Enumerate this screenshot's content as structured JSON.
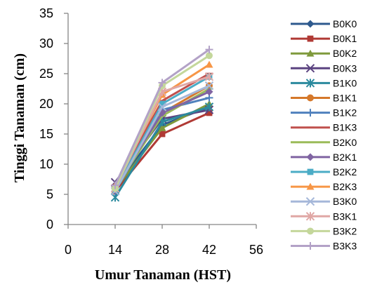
{
  "chart_data": {
    "type": "line",
    "xlabel": "Umur Tanaman (HST)",
    "ylabel": "Tinggi Tanaman (cm)",
    "xlim": [
      0,
      56
    ],
    "ylim": [
      0,
      35
    ],
    "x_ticks": [
      0,
      14,
      28,
      42,
      56
    ],
    "y_ticks": [
      0,
      5,
      10,
      15,
      20,
      25,
      30,
      35
    ],
    "grid": false,
    "legend_position": "right",
    "x": [
      14,
      28,
      42
    ],
    "series": [
      {
        "name": "B0K0",
        "color": "#2e5a8e",
        "marker": "diamond",
        "values": [
          6.3,
          16.5,
          19.5
        ]
      },
      {
        "name": "B0K1",
        "color": "#b03a35",
        "marker": "square",
        "values": [
          5.5,
          15.0,
          18.5
        ]
      },
      {
        "name": "B0K2",
        "color": "#7f9a3c",
        "marker": "triangle",
        "values": [
          5.8,
          16.0,
          20.0
        ]
      },
      {
        "name": "B0K3",
        "color": "#5b4380",
        "marker": "x",
        "values": [
          7.0,
          17.5,
          19.0
        ]
      },
      {
        "name": "B1K0",
        "color": "#2b8a9e",
        "marker": "asterisk",
        "values": [
          4.5,
          17.0,
          19.5
        ]
      },
      {
        "name": "B1K1",
        "color": "#d5782a",
        "marker": "circle",
        "values": [
          6.0,
          18.5,
          23.0
        ]
      },
      {
        "name": "B1K2",
        "color": "#4f81bd",
        "marker": "plus",
        "values": [
          5.5,
          19.0,
          21.0
        ]
      },
      {
        "name": "B1K3",
        "color": "#c0504d",
        "marker": "dash",
        "values": [
          6.5,
          20.5,
          25.0
        ]
      },
      {
        "name": "B2K0",
        "color": "#9bbb59",
        "marker": "dash",
        "values": [
          6.0,
          18.0,
          22.5
        ]
      },
      {
        "name": "B2K1",
        "color": "#8064a2",
        "marker": "diamond",
        "values": [
          6.2,
          18.5,
          22.0
        ]
      },
      {
        "name": "B2K2",
        "color": "#4bacc6",
        "marker": "square",
        "values": [
          5.8,
          20.0,
          24.5
        ]
      },
      {
        "name": "B2K3",
        "color": "#f79646",
        "marker": "triangle",
        "values": [
          6.5,
          21.5,
          26.5
        ]
      },
      {
        "name": "B3K0",
        "color": "#a5b7d9",
        "marker": "x",
        "values": [
          5.5,
          19.5,
          23.0
        ]
      },
      {
        "name": "B3K1",
        "color": "#e0a7a5",
        "marker": "asterisk",
        "values": [
          6.0,
          22.0,
          24.5
        ]
      },
      {
        "name": "B3K2",
        "color": "#c4d79b",
        "marker": "circle",
        "values": [
          6.0,
          23.0,
          28.0
        ]
      },
      {
        "name": "B3K3",
        "color": "#b3a2c7",
        "marker": "plus",
        "values": [
          6.5,
          23.5,
          29.0
        ]
      }
    ]
  }
}
